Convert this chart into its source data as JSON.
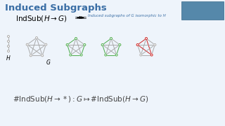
{
  "title": "Induced Subgraphs",
  "title_color": "#3a6ea5",
  "bg_color": "#eef4fb",
  "graph_gray": "#aaaaaa",
  "graph_green": "#4aaa4a",
  "graph_red": "#cc2222",
  "arrow_label": "Induced subgraphs of G isomorphic to H",
  "arrow_label_color": "#3a6ea5",
  "node_r": 1.5,
  "graph_lw": 0.7
}
